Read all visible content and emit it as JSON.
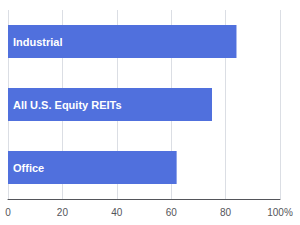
{
  "chart_data": {
    "type": "bar",
    "orientation": "horizontal",
    "categories": [
      "Industrial",
      "All U.S. Equity REITs",
      "Office"
    ],
    "values": [
      84,
      75,
      62
    ],
    "xlim": [
      0,
      100
    ],
    "xticks": [
      0,
      20,
      40,
      60,
      80,
      {
        "value": 100,
        "label": "100%"
      }
    ],
    "grid": true,
    "tick_labels": "x"
  }
}
